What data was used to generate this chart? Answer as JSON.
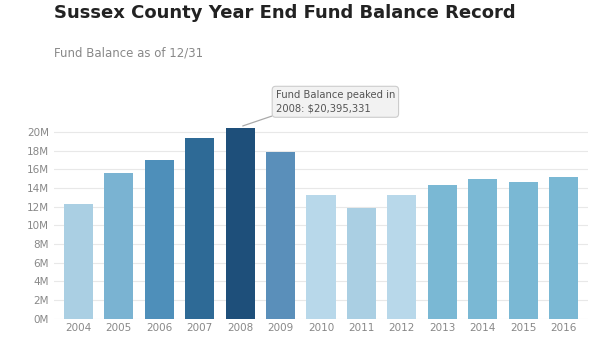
{
  "title": "Sussex County Year End Fund Balance Record",
  "subtitle": "Fund Balance as of 12/31",
  "years": [
    2004,
    2005,
    2006,
    2007,
    2008,
    2009,
    2010,
    2011,
    2012,
    2013,
    2014,
    2015,
    2016
  ],
  "values": [
    12300000,
    15600000,
    17000000,
    19400000,
    20395331,
    17800000,
    13200000,
    11800000,
    13200000,
    14300000,
    15000000,
    14600000,
    15200000
  ],
  "bar_colors": [
    "#aacfe3",
    "#7ab3d2",
    "#4e8fba",
    "#2e6a96",
    "#1e4f7a",
    "#5a8fba",
    "#b8d8ea",
    "#aacfe3",
    "#b8d8ea",
    "#7ab8d4",
    "#7ab8d4",
    "#7ab8d4",
    "#7ab8d4"
  ],
  "peak_year_idx": 4,
  "peak_value": 20395331,
  "annotation_line1": "Fund Balance peaked in",
  "annotation_line2": "2008: $20,395,331",
  "ylim": [
    0,
    22000000
  ],
  "yticks": [
    0,
    2000000,
    4000000,
    6000000,
    8000000,
    10000000,
    12000000,
    14000000,
    16000000,
    18000000,
    20000000
  ],
  "ytick_labels": [
    "0M",
    "2M",
    "4M",
    "6M",
    "8M",
    "10M",
    "12M",
    "14M",
    "16M",
    "18M",
    "20M"
  ],
  "background_color": "#ffffff",
  "title_fontsize": 13,
  "subtitle_fontsize": 8.5,
  "tick_fontsize": 7.5,
  "grid_color": "#e8e8e8",
  "tick_color": "#888888",
  "title_color": "#222222",
  "subtitle_color": "#888888"
}
